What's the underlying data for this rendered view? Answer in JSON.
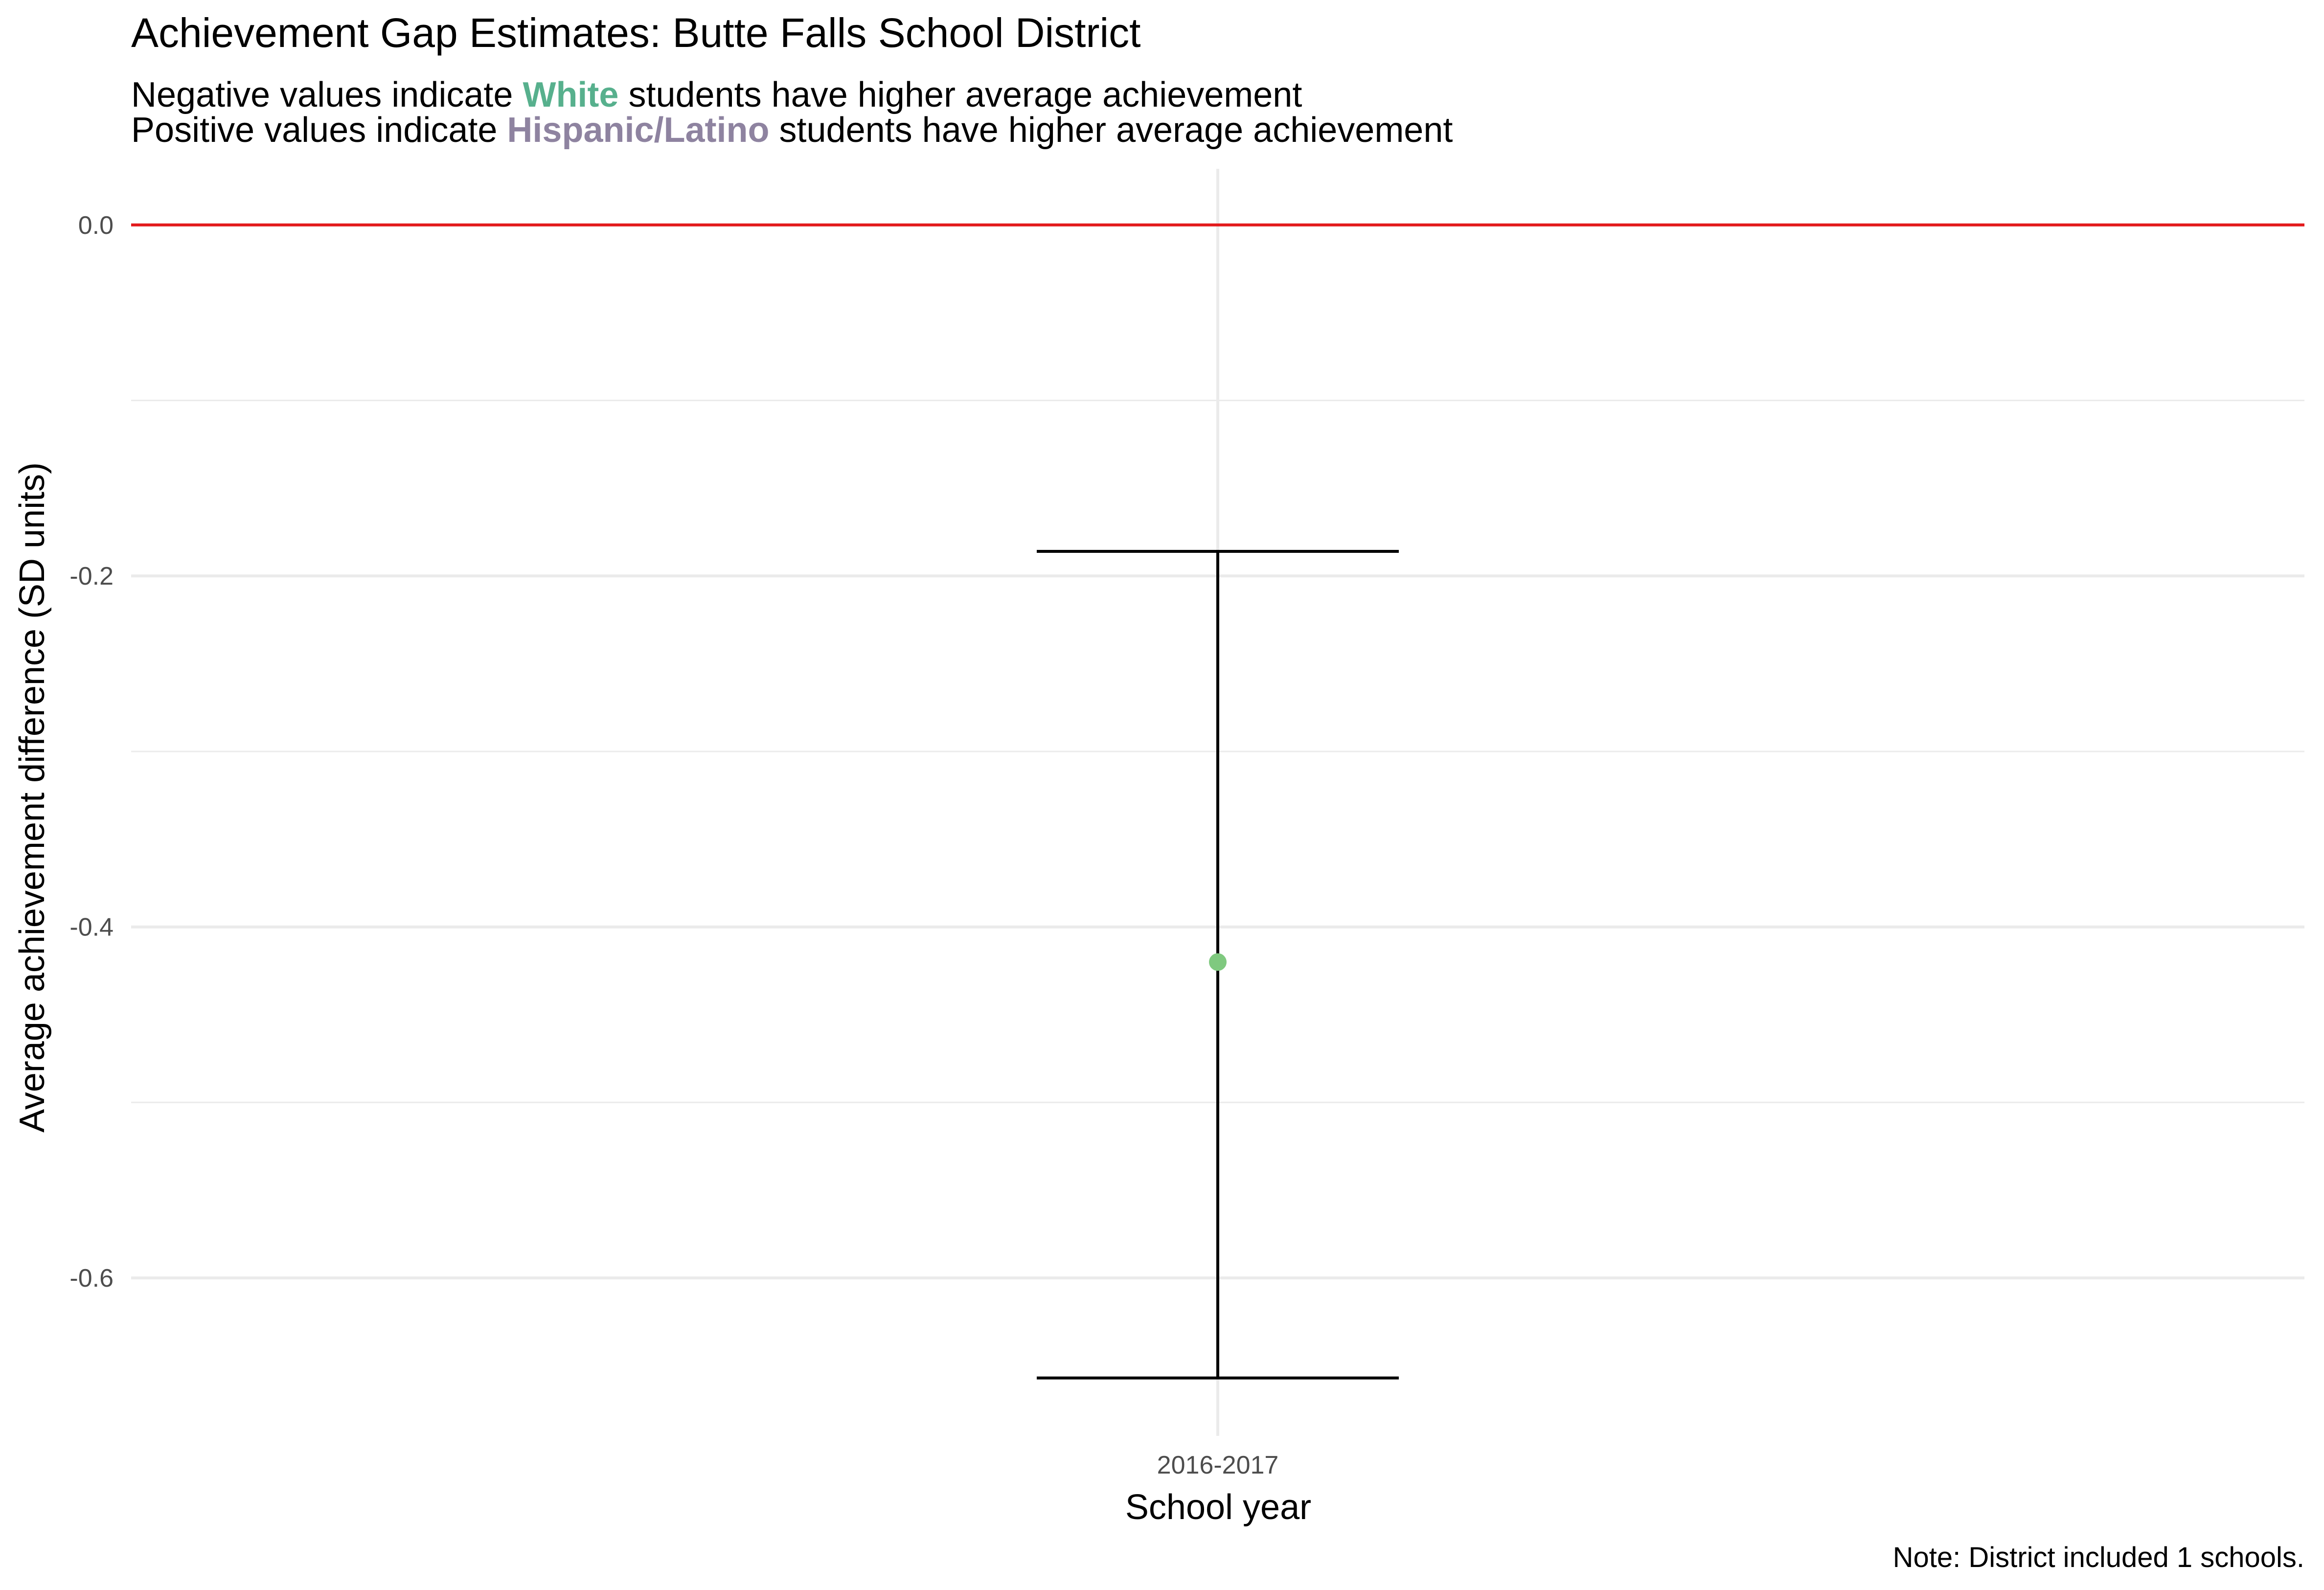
{
  "chart_data": {
    "type": "scatter",
    "title": "Achievement Gap Estimates: Butte Falls School District",
    "subtitle_lines": [
      {
        "before": "Negative values indicate ",
        "highlight": "White",
        "after": " students have higher average achievement"
      },
      {
        "before": "Positive values indicate ",
        "highlight": "Hispanic/Latino",
        "after": " students have higher average achievement"
      }
    ],
    "highlight_colors": {
      "White": "#57b08d",
      "Hispanic/Latino": "#8e83a0"
    },
    "xlabel": "School year",
    "ylabel": "Average achievement difference (SD units)",
    "categories": [
      "2016-2017"
    ],
    "values": [
      -0.42
    ],
    "ci_lower": [
      -0.657
    ],
    "ci_upper": [
      -0.186
    ],
    "ylim": [
      -0.69,
      0.032
    ],
    "y_ticks": [
      0.0,
      -0.2,
      -0.4,
      -0.6
    ],
    "y_tick_labels": [
      "0.0",
      "-0.2",
      "-0.4",
      "-0.6"
    ],
    "reference_line": {
      "y": 0,
      "color": "#e31a1c"
    },
    "point_color": "#7fc97f",
    "grid": true,
    "legend": "none",
    "caption": "Note: District included 1 schools."
  }
}
